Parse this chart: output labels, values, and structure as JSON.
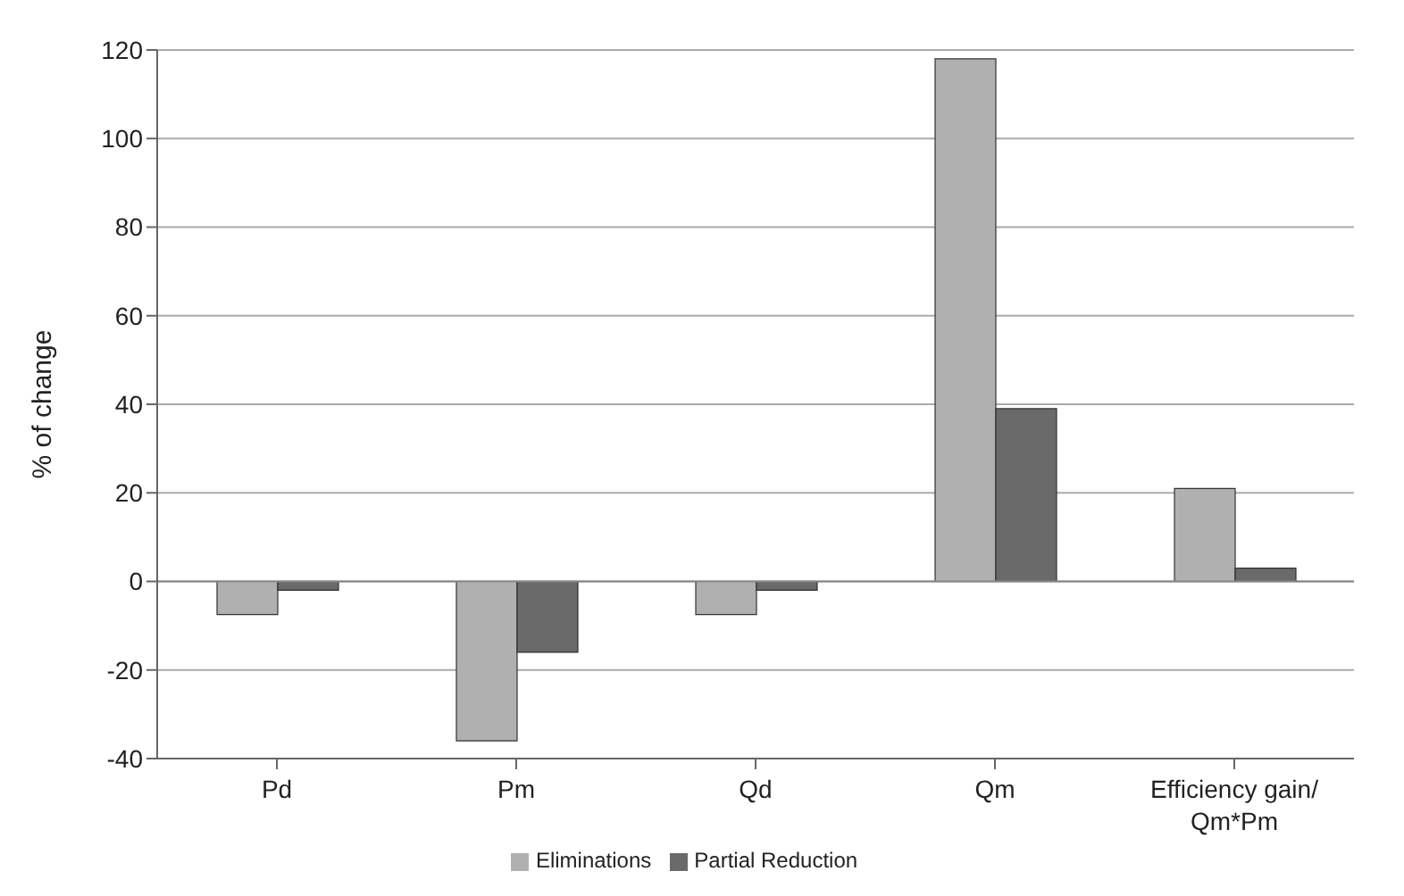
{
  "chart_data": {
    "type": "bar",
    "ylabel": "% of change",
    "categories": [
      "Pd",
      "Pm",
      "Qd",
      "Qm",
      "Efficiency gain/\nQm*Pm"
    ],
    "series": [
      {
        "name": "Eliminations",
        "color": "#b0b0b0",
        "values": [
          -7.5,
          -36,
          -7.5,
          118,
          21
        ]
      },
      {
        "name": "Partial Reduction",
        "color": "#6a6a6a",
        "values": [
          -2,
          -16,
          -2,
          39,
          3
        ]
      }
    ],
    "ylim": [
      -40,
      120
    ],
    "yticks": [
      -40,
      -20,
      0,
      20,
      40,
      60,
      80,
      100,
      120
    ],
    "grid": "y",
    "legend": "bottom"
  }
}
